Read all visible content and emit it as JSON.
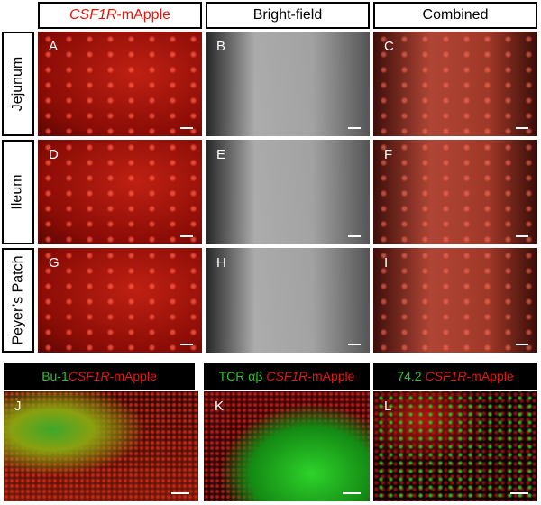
{
  "column_headers": [
    [
      "CSF1R",
      "-mApple"
    ],
    [
      "Bright-field"
    ],
    [
      "Combined"
    ]
  ],
  "row_labels": [
    "Jejunum",
    "Ileum",
    "Peyer’s Patch"
  ],
  "panel_letters": [
    "A",
    "B",
    "C",
    "D",
    "E",
    "F",
    "G",
    "H",
    "I",
    "J",
    "K",
    "L"
  ],
  "bottom_headers": [
    [
      "Bu-1",
      "CSF1R",
      "-mApple"
    ],
    [
      "TCR αβ",
      "CSF1R",
      "-mApple"
    ],
    [
      "74.2",
      "CSF1R",
      "-mApple"
    ]
  ]
}
